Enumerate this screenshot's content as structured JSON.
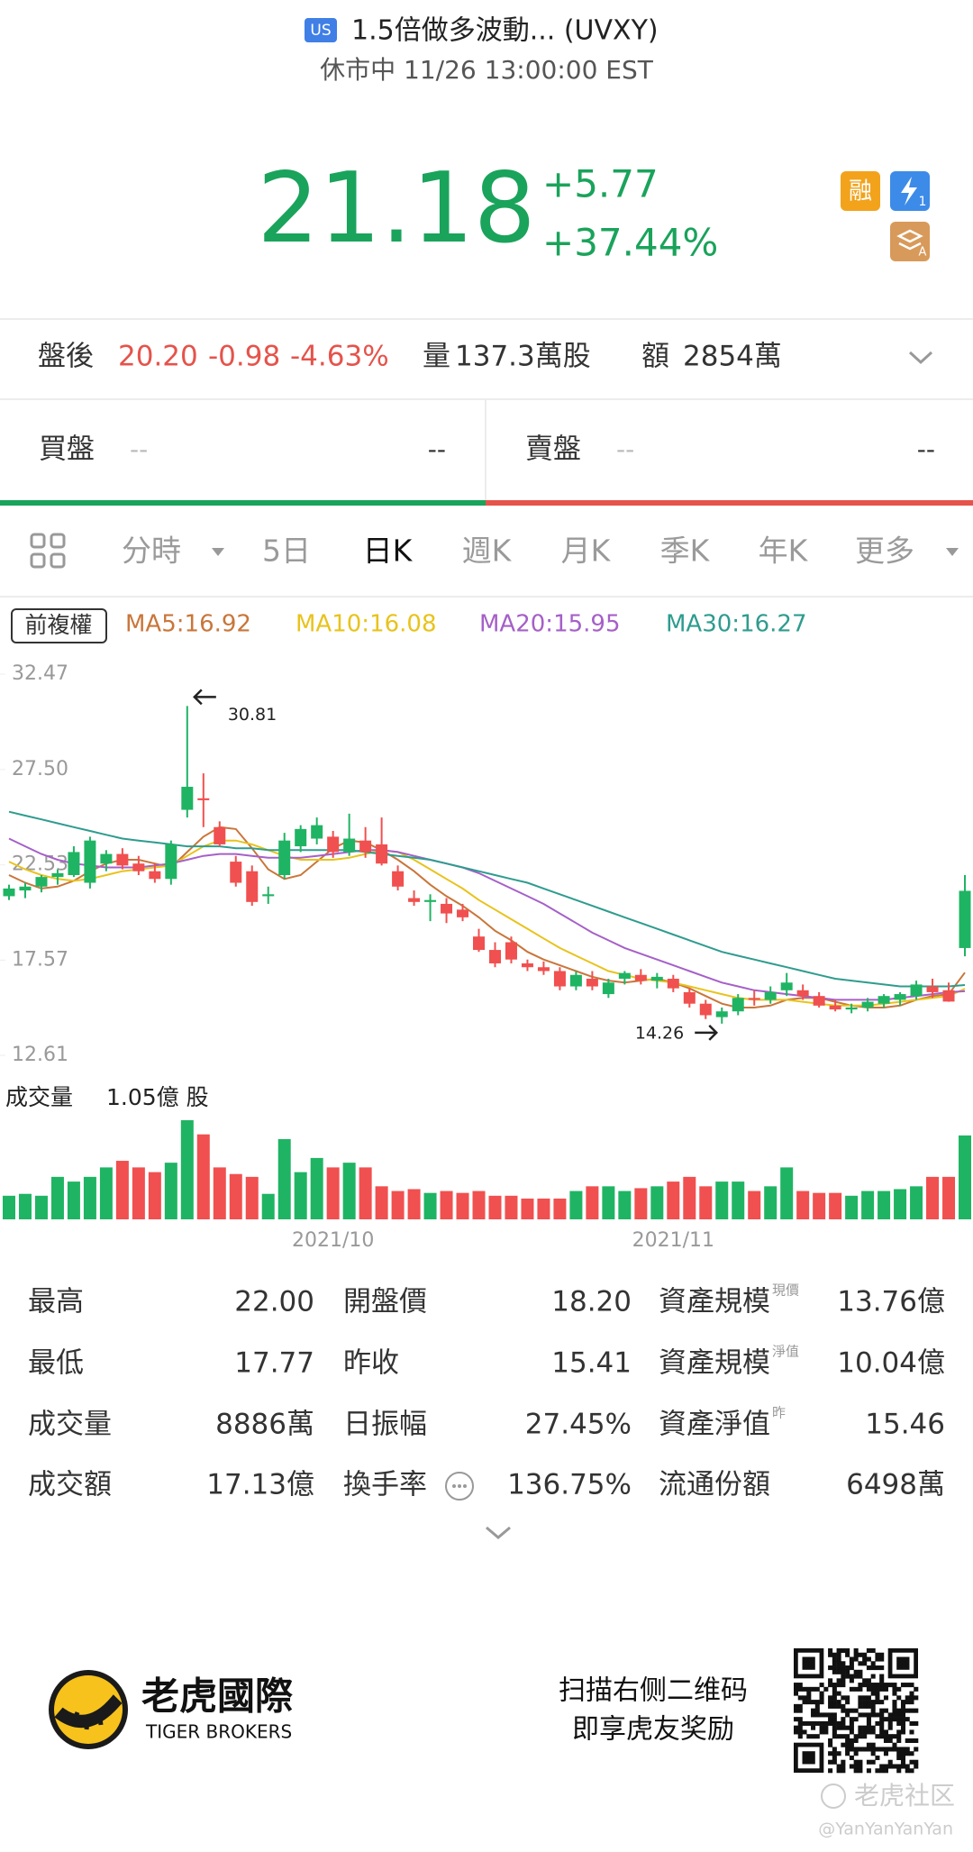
{
  "header": {
    "market_badge": "US",
    "title": "1.5倍做多波動... (UVXY)",
    "status": "休市中 11/26 13:00:00 EST"
  },
  "quote": {
    "price": "21.18",
    "change": "+5.77",
    "change_pct": "+37.44%",
    "margin_badge": "融",
    "flash_badge": "1",
    "stack_badge": "A"
  },
  "after_hours": {
    "label": "盤後",
    "price": "20.20",
    "change": "-0.98",
    "change_pct": "-4.63%",
    "volume_label": "量",
    "volume": "137.3萬股",
    "amount_label": "額",
    "amount": "2854萬"
  },
  "order_book": {
    "bid_label": "買盤",
    "bid_price": "--",
    "bid_size": "--",
    "ask_label": "賣盤",
    "ask_price": "--",
    "ask_size": "--"
  },
  "tabs": [
    "分時",
    "5日",
    "日K",
    "週K",
    "月K",
    "季K",
    "年K",
    "更多"
  ],
  "active_tab_index": 2,
  "adjust_label": "前複權",
  "chart_data": {
    "type": "candlestick",
    "up_color": "#1fb463",
    "down_color": "#f0504f",
    "ylim": [
      12.61,
      32.47
    ],
    "yticks": [
      12.61,
      17.57,
      22.53,
      {
        "value": 27.5,
        "label": "27.50"
      },
      32.47
    ],
    "categories": [
      null,
      null,
      null,
      null,
      null,
      null,
      null,
      null,
      null,
      null,
      null,
      null,
      null,
      null,
      null,
      null,
      null,
      null,
      null,
      null,
      "2021/10",
      null,
      null,
      null,
      null,
      null,
      null,
      null,
      null,
      null,
      null,
      null,
      null,
      null,
      null,
      null,
      null,
      null,
      null,
      null,
      null,
      "2021/11",
      null,
      null,
      null,
      null,
      null,
      null,
      null,
      null,
      null,
      null,
      null,
      null,
      null,
      null,
      null,
      null,
      null,
      null
    ],
    "open": [
      20.9,
      21.2,
      21.4,
      21.9,
      22.0,
      21.6,
      22.6,
      23.1,
      22.6,
      22.2,
      21.8,
      25.4,
      26.0,
      24.5,
      22.7,
      22.2,
      20.9,
      22.0,
      23.5,
      23.9,
      24.0,
      23.2,
      23.8,
      23.6,
      22.2,
      20.8,
      20.6,
      20.5,
      20.2,
      18.8,
      18.1,
      18.5,
      17.4,
      17.2,
      17.0,
      16.2,
      16.6,
      15.8,
      16.6,
      16.8,
      16.5,
      16.6,
      15.9,
      15.3,
      14.6,
      14.9,
      15.6,
      15.5,
      16.0,
      16.0,
      15.7,
      15.2,
      15.0,
      15.1,
      15.3,
      15.5,
      15.7,
      16.2,
      16.0,
      18.2
    ],
    "high": [
      21.5,
      21.6,
      22.0,
      22.3,
      23.5,
      24.0,
      23.3,
      23.4,
      23.0,
      22.6,
      23.8,
      30.81,
      27.3,
      24.8,
      23.0,
      22.5,
      21.4,
      24.2,
      24.6,
      25.0,
      24.3,
      25.2,
      24.5,
      25.0,
      22.5,
      21.2,
      21.0,
      20.8,
      20.5,
      19.2,
      18.5,
      18.8,
      17.6,
      17.5,
      17.2,
      17.0,
      17.0,
      16.6,
      17.0,
      17.1,
      16.9,
      16.8,
      16.1,
      15.5,
      15.1,
      15.8,
      16.0,
      16.2,
      16.9,
      16.3,
      15.9,
      15.5,
      15.3,
      15.6,
      15.8,
      15.9,
      16.5,
      16.6,
      16.4,
      22.0
    ],
    "low": [
      20.7,
      20.8,
      21.1,
      21.5,
      21.9,
      21.3,
      22.2,
      22.3,
      22.0,
      21.6,
      21.5,
      25.0,
      24.5,
      23.5,
      21.4,
      20.4,
      20.5,
      21.8,
      23.2,
      23.6,
      22.9,
      23.0,
      22.9,
      22.5,
      21.2,
      20.4,
      19.6,
      19.5,
      19.6,
      18.0,
      17.2,
      17.4,
      17.0,
      16.8,
      16.0,
      16.0,
      16.0,
      15.6,
      16.3,
      16.3,
      16.1,
      15.9,
      15.1,
      14.5,
      14.26,
      14.7,
      15.2,
      15.3,
      15.7,
      15.5,
      15.1,
      14.9,
      14.8,
      14.9,
      15.1,
      15.2,
      15.5,
      15.6,
      15.4,
      17.77
    ],
    "close": [
      21.3,
      21.4,
      21.9,
      22.1,
      23.2,
      23.8,
      23.1,
      22.5,
      22.2,
      21.8,
      23.6,
      26.6,
      25.9,
      23.6,
      21.6,
      20.6,
      21.0,
      23.8,
      24.4,
      24.6,
      23.2,
      23.9,
      23.2,
      22.6,
      21.4,
      20.6,
      20.7,
      20.0,
      19.8,
      18.1,
      17.4,
      17.6,
      17.2,
      17.0,
      16.2,
      16.8,
      16.2,
      16.4,
      16.9,
      16.5,
      16.7,
      16.1,
      15.3,
      14.7,
      14.9,
      15.6,
      15.5,
      15.9,
      16.4,
      15.7,
      15.2,
      15.0,
      15.1,
      15.4,
      15.7,
      15.8,
      16.3,
      15.9,
      15.41,
      21.18
    ],
    "ma": [
      {
        "label": "MA5:16.92",
        "color": "#c9763a",
        "values": [
          22.0,
          21.6,
          21.3,
          21.4,
          21.7,
          22.2,
          22.6,
          22.8,
          22.8,
          22.6,
          22.4,
          23.2,
          24.0,
          24.5,
          24.4,
          23.4,
          22.3,
          21.8,
          22.0,
          22.7,
          23.4,
          23.8,
          23.7,
          23.3,
          22.8,
          22.2,
          21.5,
          20.9,
          20.4,
          19.8,
          19.1,
          18.6,
          18.0,
          17.6,
          17.3,
          17.0,
          16.7,
          16.5,
          16.4,
          16.5,
          16.6,
          16.4,
          16.1,
          15.7,
          15.3,
          15.1,
          15.1,
          15.2,
          15.5,
          15.6,
          15.6,
          15.4,
          15.2,
          15.1,
          15.1,
          15.2,
          15.5,
          15.7,
          15.8,
          16.92
        ]
      },
      {
        "label": "MA10:16.08",
        "color": "#e8c31c",
        "values": [
          22.7,
          22.3,
          22.0,
          21.8,
          21.7,
          21.8,
          22.0,
          22.2,
          22.3,
          22.4,
          22.5,
          23.0,
          23.5,
          23.8,
          23.8,
          23.6,
          23.3,
          23.0,
          22.8,
          22.8,
          22.8,
          22.9,
          23.1,
          23.3,
          23.2,
          22.8,
          22.3,
          21.8,
          21.3,
          20.7,
          20.2,
          19.7,
          19.2,
          18.7,
          18.2,
          17.8,
          17.4,
          17.0,
          16.8,
          16.6,
          16.5,
          16.4,
          16.2,
          16.0,
          15.8,
          15.6,
          15.5,
          15.5,
          15.5,
          15.4,
          15.3,
          15.2,
          15.2,
          15.2,
          15.3,
          15.4,
          15.5,
          15.6,
          15.7,
          16.08
        ]
      },
      {
        "label": "MA20:15.95",
        "color": "#a560c8",
        "values": [
          23.9,
          23.5,
          23.1,
          22.8,
          22.6,
          22.5,
          22.4,
          22.4,
          22.4,
          22.5,
          22.6,
          22.8,
          23.0,
          23.1,
          23.1,
          23.0,
          22.9,
          22.9,
          22.9,
          23.0,
          23.1,
          23.2,
          23.3,
          23.3,
          23.2,
          23.0,
          22.8,
          22.6,
          22.4,
          22.1,
          21.7,
          21.3,
          20.9,
          20.5,
          20.0,
          19.5,
          19.0,
          18.6,
          18.2,
          17.9,
          17.6,
          17.3,
          17.0,
          16.7,
          16.4,
          16.2,
          16.0,
          15.9,
          15.8,
          15.7,
          15.6,
          15.5,
          15.5,
          15.5,
          15.5,
          15.6,
          15.7,
          15.8,
          15.9,
          15.95
        ]
      },
      {
        "label": "MA30:16.27",
        "color": "#2e9c8e",
        "values": [
          25.3,
          25.1,
          24.9,
          24.7,
          24.5,
          24.3,
          24.1,
          23.9,
          23.8,
          23.7,
          23.6,
          23.5,
          23.5,
          23.5,
          23.4,
          23.4,
          23.3,
          23.3,
          23.3,
          23.3,
          23.3,
          23.3,
          23.2,
          23.1,
          23.0,
          22.9,
          22.8,
          22.6,
          22.4,
          22.2,
          22.0,
          21.8,
          21.6,
          21.3,
          21.0,
          20.7,
          20.4,
          20.1,
          19.8,
          19.5,
          19.2,
          18.9,
          18.6,
          18.3,
          18.0,
          17.8,
          17.6,
          17.4,
          17.2,
          17.0,
          16.8,
          16.6,
          16.5,
          16.4,
          16.3,
          16.2,
          16.2,
          16.2,
          16.2,
          16.27
        ]
      }
    ],
    "volume": {
      "title": "成交量",
      "max_label": "1.05億 股",
      "ylim": [
        0,
        1.05
      ],
      "values": [
        0.25,
        0.27,
        0.25,
        0.45,
        0.4,
        0.45,
        0.55,
        0.62,
        0.55,
        0.5,
        0.6,
        1.05,
        0.9,
        0.55,
        0.48,
        0.45,
        0.27,
        0.85,
        0.5,
        0.65,
        0.55,
        0.6,
        0.55,
        0.35,
        0.3,
        0.32,
        0.28,
        0.3,
        0.28,
        0.3,
        0.25,
        0.25,
        0.22,
        0.22,
        0.22,
        0.3,
        0.35,
        0.35,
        0.3,
        0.33,
        0.35,
        0.4,
        0.45,
        0.35,
        0.4,
        0.4,
        0.3,
        0.35,
        0.55,
        0.3,
        0.28,
        0.28,
        0.25,
        0.3,
        0.3,
        0.32,
        0.35,
        0.45,
        0.45,
        0.8886
      ]
    }
  },
  "stats": [
    [
      {
        "label": "最高",
        "value": "22.00"
      },
      {
        "label": "開盤價",
        "value": "18.20"
      },
      {
        "label": "資產規模",
        "sup": "現價",
        "value": "13.76億"
      }
    ],
    [
      {
        "label": "最低",
        "value": "17.77"
      },
      {
        "label": "昨收",
        "value": "15.41"
      },
      {
        "label": "資產規模",
        "sup": "淨值",
        "value": "10.04億"
      }
    ],
    [
      {
        "label": "成交量",
        "value": "8886萬"
      },
      {
        "label": "日振幅",
        "value": "27.45%"
      },
      {
        "label": "資產淨值",
        "sup": "昨",
        "value": "15.46"
      }
    ],
    [
      {
        "label": "成交額",
        "value": "17.13億"
      },
      {
        "label": "換手率",
        "value": "136.75%"
      },
      {
        "label": "流通份額",
        "value": "6498萬"
      }
    ]
  ],
  "footer": {
    "brand": "老虎國際",
    "brand_en": "TIGER BROKERS",
    "promo": [
      "扫描右侧二维码",
      "即享虎友奖励"
    ],
    "watermark": "老虎社区",
    "user": "@YanYanYanYan"
  }
}
